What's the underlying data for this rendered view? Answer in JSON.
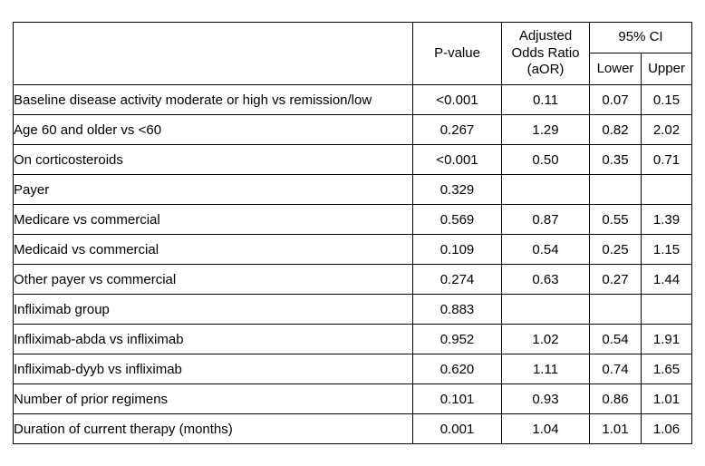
{
  "table": {
    "header": {
      "label": "",
      "p_value": "P-value",
      "aor": "Adjusted Odds Ratio (aOR)",
      "ci_group": "95% CI",
      "ci_lower": "Lower",
      "ci_upper": "Upper"
    },
    "rows": [
      {
        "label": "Baseline disease activity moderate or high vs remission/low",
        "p_value": "<0.001",
        "p_value_bold": true,
        "aor": "0.11",
        "lower": "0.07",
        "upper": "0.15"
      },
      {
        "label": "Age 60 and older vs <60",
        "p_value": "0.267",
        "p_value_bold": false,
        "aor": "1.29",
        "lower": "0.82",
        "upper": "2.02"
      },
      {
        "label": "On corticosteroids",
        "p_value": "<0.001",
        "p_value_bold": true,
        "aor": "0.50",
        "lower": "0.35",
        "upper": "0.71"
      },
      {
        "label": "Payer",
        "p_value": "0.329",
        "p_value_bold": false,
        "aor": "",
        "lower": "",
        "upper": ""
      },
      {
        "label": "Medicare vs commercial",
        "p_value": "0.569",
        "p_value_bold": false,
        "aor": "0.87",
        "lower": "0.55",
        "upper": "1.39"
      },
      {
        "label": "Medicaid vs commercial",
        "p_value": "0.109",
        "p_value_bold": false,
        "aor": "0.54",
        "lower": "0.25",
        "upper": "1.15"
      },
      {
        "label": "Other payer vs commercial",
        "p_value": "0.274",
        "p_value_bold": false,
        "aor": "0.63",
        "lower": "0.27",
        "upper": "1.44"
      },
      {
        "label": "Infliximab group",
        "p_value": "0.883",
        "p_value_bold": false,
        "aor": "",
        "lower": "",
        "upper": ""
      },
      {
        "label": "Infliximab-abda vs infliximab",
        "p_value": "0.952",
        "p_value_bold": false,
        "aor": "1.02",
        "lower": "0.54",
        "upper": "1.91"
      },
      {
        "label": "Infliximab-dyyb vs infliximab",
        "p_value": "0.620",
        "p_value_bold": false,
        "aor": "1.11",
        "lower": "0.74",
        "upper": "1.65"
      },
      {
        "label": "Number of prior regimens",
        "p_value": "0.101",
        "p_value_bold": false,
        "aor": "0.93",
        "lower": "0.86",
        "upper": "1.01"
      },
      {
        "label": "Duration of current therapy (months)",
        "p_value": "0.001",
        "p_value_bold": true,
        "aor": "1.04",
        "lower": "1.01",
        "upper": "1.06"
      }
    ]
  }
}
